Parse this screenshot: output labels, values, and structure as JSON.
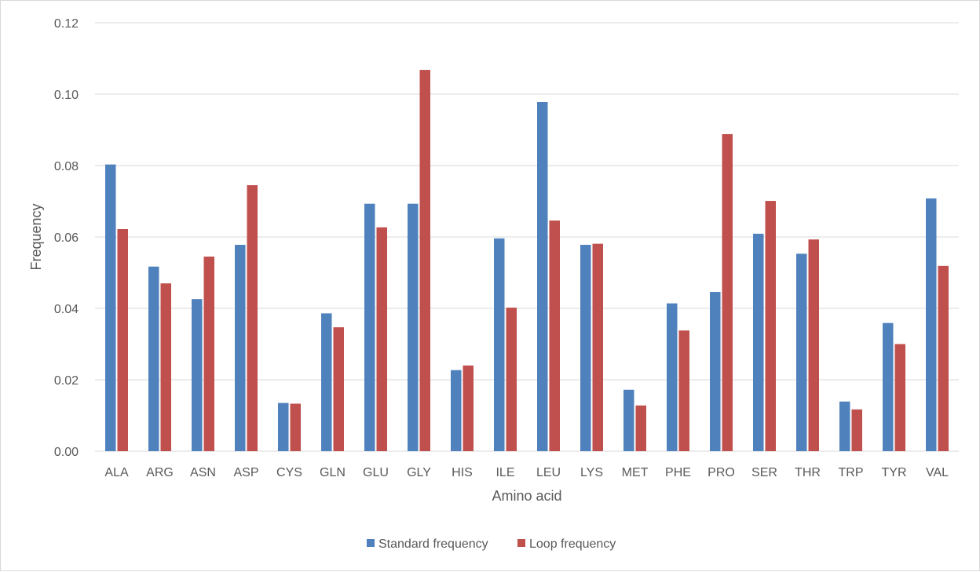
{
  "chart_data": {
    "type": "bar",
    "title": "",
    "xlabel": "Amino acid",
    "ylabel": "Frequency",
    "ylim": [
      0,
      0.12
    ],
    "yticks": [
      "0.00",
      "0.02",
      "0.04",
      "0.06",
      "0.08",
      "0.10",
      "0.12"
    ],
    "grid": "horizontal",
    "legend_position": "bottom",
    "categories": [
      "ALA",
      "ARG",
      "ASN",
      "ASP",
      "CYS",
      "GLN",
      "GLU",
      "GLY",
      "HIS",
      "ILE",
      "LEU",
      "LYS",
      "MET",
      "PHE",
      "PRO",
      "SER",
      "THR",
      "TRP",
      "TYR",
      "VAL"
    ],
    "series": [
      {
        "name": "Standard frequency",
        "color": "#4f81bd",
        "values": [
          0.0803,
          0.0517,
          0.0426,
          0.0578,
          0.0135,
          0.0386,
          0.0693,
          0.0693,
          0.0227,
          0.0596,
          0.0978,
          0.0578,
          0.0172,
          0.0414,
          0.0446,
          0.0609,
          0.0553,
          0.0139,
          0.0359,
          0.0708
        ]
      },
      {
        "name": "Loop frequency",
        "color": "#c0504d",
        "values": [
          0.0622,
          0.047,
          0.0545,
          0.0745,
          0.0133,
          0.0347,
          0.0627,
          0.1068,
          0.024,
          0.0402,
          0.0646,
          0.0581,
          0.0128,
          0.0338,
          0.0888,
          0.0701,
          0.0593,
          0.0117,
          0.03,
          0.0519
        ]
      }
    ]
  }
}
